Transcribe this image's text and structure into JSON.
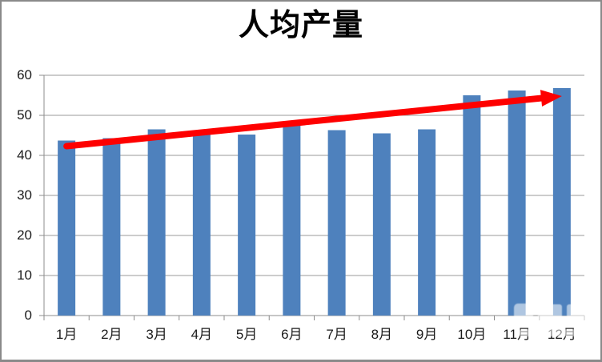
{
  "chart_data": {
    "type": "bar",
    "title": "人均产量",
    "categories": [
      "1月",
      "2月",
      "3月",
      "4月",
      "5月",
      "6月",
      "7月",
      "8月",
      "9月",
      "10月",
      "11月",
      "12月"
    ],
    "values": [
      43.7,
      44.3,
      46.5,
      46.0,
      45.2,
      47.4,
      46.3,
      45.5,
      46.5,
      55.0,
      56.2,
      56.8
    ],
    "xlabel": "",
    "ylabel": "",
    "ylim": [
      0,
      60
    ],
    "yticks": [
      0,
      10,
      20,
      30,
      40,
      50,
      60
    ],
    "grid": true,
    "legend": "none",
    "trend_arrow": {
      "shape": "straight-arrow",
      "start_category": "1月",
      "end_category": "12月",
      "start_value": 42.3,
      "end_value": 54.8
    }
  },
  "colors": {
    "background": "#FFFFFF",
    "bar": "#4E81BD",
    "arrow": "#FE0000",
    "gridline": "#9A9A9A",
    "axis": "#8C8C8C",
    "text": "#1A1A1A",
    "border": "#8A8A8A"
  }
}
